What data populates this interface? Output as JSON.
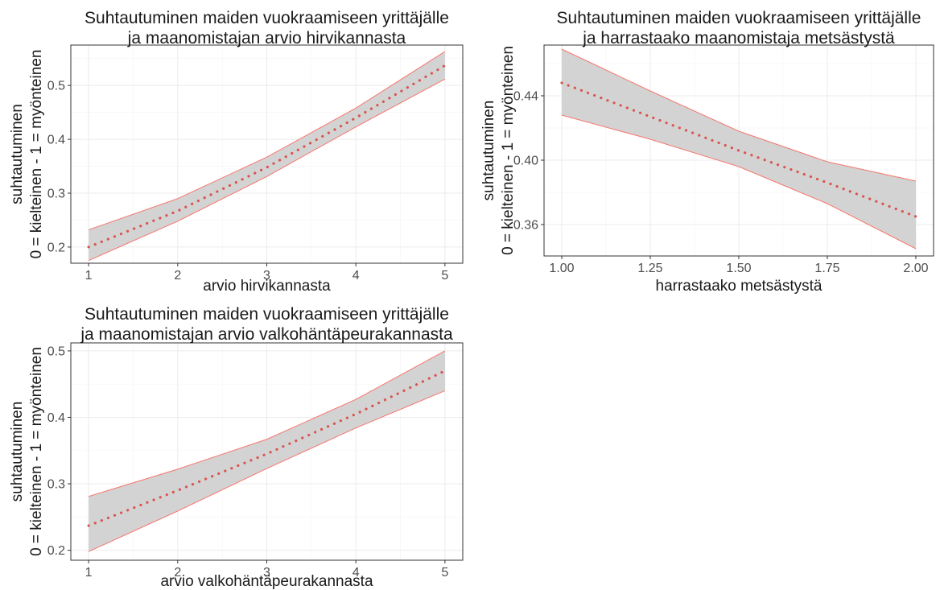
{
  "chart_data": [
    {
      "type": "line",
      "title": [
        "Suhtautuminen maiden vuokraamiseen yrittäjälle",
        "ja maanomistajan arvio hirvikannasta"
      ],
      "xlabel": "arvio hirvikannasta",
      "ylabel": [
        "suhtautuminen",
        "0 = kielteinen - 1 = myönteinen"
      ],
      "xlim": [
        0.8,
        5.2
      ],
      "ylim": [
        0.17,
        0.575
      ],
      "x_ticks": [
        1,
        2,
        3,
        4,
        5
      ],
      "y_ticks": [
        0.2,
        0.3,
        0.4,
        0.5
      ],
      "x_tick_labels": [
        "1",
        "2",
        "3",
        "4",
        "5"
      ],
      "y_tick_labels": [
        "0.2",
        "0.3",
        "0.4",
        "0.5"
      ],
      "grid": true,
      "series": [
        {
          "x": [
            1,
            2,
            3,
            4,
            5
          ],
          "fit": [
            0.2,
            0.267,
            0.348,
            0.44,
            0.537
          ],
          "lower": [
            0.175,
            0.248,
            0.331,
            0.423,
            0.512
          ],
          "upper": [
            0.232,
            0.29,
            0.367,
            0.458,
            0.563
          ]
        }
      ]
    },
    {
      "type": "line",
      "title": [
        "Suhtautuminen maiden vuokraamiseen yrittäjälle",
        "ja harrastaako maanomistaja metsästystä"
      ],
      "xlabel": "harrastaako metsästystä",
      "ylabel": [
        "suhtautuminen",
        "0 = kielteinen - 1 = myönteinen"
      ],
      "xlim": [
        0.95,
        2.05
      ],
      "ylim": [
        0.3405,
        0.4715
      ],
      "x_ticks": [
        1,
        1.25,
        1.5,
        1.75,
        2
      ],
      "y_ticks": [
        0.36,
        0.4,
        0.44
      ],
      "x_tick_labels": [
        "1.00",
        "1.25",
        "1.50",
        "1.75",
        "2.00"
      ],
      "y_tick_labels": [
        "0.36",
        "0.40",
        "0.44"
      ],
      "grid": true,
      "series": [
        {
          "x": [
            1,
            1.25,
            1.5,
            1.75,
            2
          ],
          "fit": [
            0.448,
            0.427,
            0.406,
            0.386,
            0.365
          ],
          "lower": [
            0.428,
            0.413,
            0.396,
            0.373,
            0.345
          ],
          "upper": [
            0.469,
            0.443,
            0.418,
            0.399,
            0.387
          ]
        }
      ]
    },
    {
      "type": "line",
      "title": [
        "Suhtautuminen maiden vuokraamiseen yrittäjälle",
        "ja maanomistajan arvio valkohäntäpeurakannasta"
      ],
      "xlabel": "arvio valkohäntäpeurakannasta",
      "ylabel": [
        "suhtautuminen",
        "0 = kielteinen - 1 = myönteinen"
      ],
      "xlim": [
        0.8,
        5.2
      ],
      "ylim": [
        0.185,
        0.512
      ],
      "x_ticks": [
        1,
        2,
        3,
        4,
        5
      ],
      "y_ticks": [
        0.2,
        0.3,
        0.4,
        0.5
      ],
      "x_tick_labels": [
        "1",
        "2",
        "3",
        "4",
        "5"
      ],
      "y_tick_labels": [
        "0.2",
        "0.3",
        "0.4",
        "0.5"
      ],
      "grid": true,
      "series": [
        {
          "x": [
            1,
            2,
            3,
            4,
            5
          ],
          "fit": [
            0.237,
            0.29,
            0.345,
            0.405,
            0.47
          ],
          "lower": [
            0.198,
            0.259,
            0.323,
            0.384,
            0.44
          ],
          "upper": [
            0.281,
            0.322,
            0.367,
            0.427,
            0.5
          ]
        }
      ]
    }
  ]
}
